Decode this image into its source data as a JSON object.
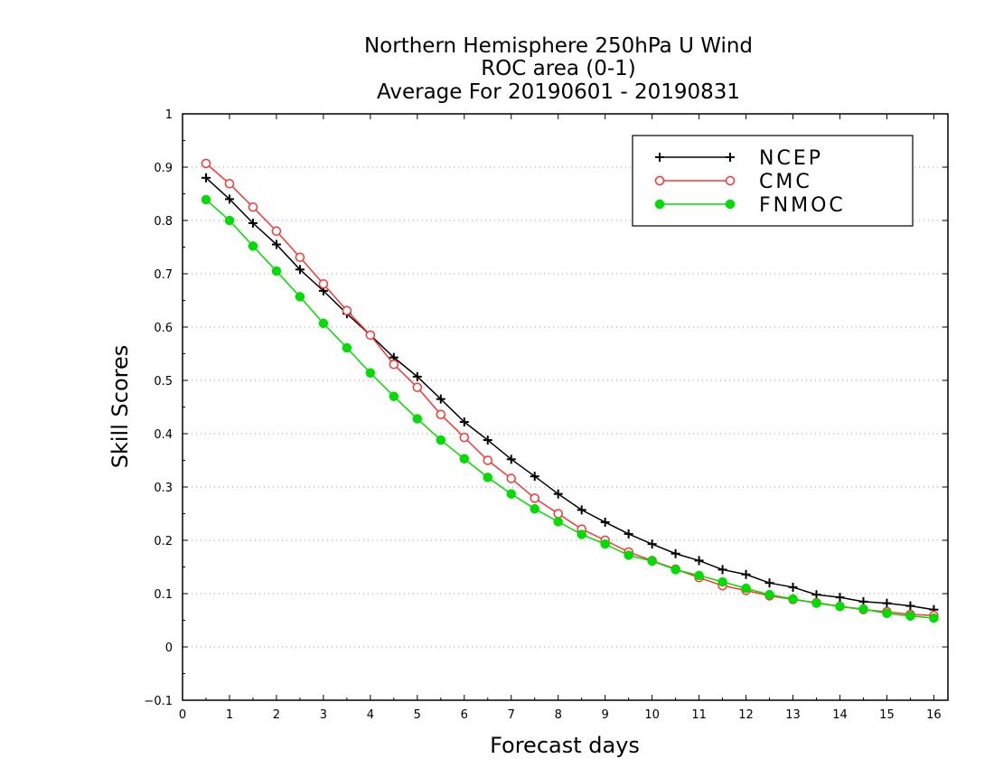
{
  "chart_data": {
    "type": "line",
    "title_lines": [
      "Northern Hemisphere 250hPa U Wind",
      "ROC area (0-1)",
      "Average For 20190601 - 20190831"
    ],
    "xlabel": "Forecast days",
    "ylabel": "Skill Scores",
    "xlim": [
      0,
      16.3
    ],
    "ylim": [
      -0.1,
      1
    ],
    "xticks": [
      0,
      1,
      2,
      3,
      4,
      5,
      6,
      7,
      8,
      9,
      10,
      11,
      12,
      13,
      14,
      15,
      16
    ],
    "yticks": [
      -0.1,
      0,
      0.1,
      0.2,
      0.3,
      0.4,
      0.5,
      0.6,
      0.7,
      0.8,
      0.9,
      1
    ],
    "ytick_labels": [
      "−0.1",
      "0",
      "0.1",
      "0.2",
      "0.3",
      "0.4",
      "0.5",
      "0.6",
      "0.7",
      "0.8",
      "0.9",
      "1"
    ],
    "grid": "horizontal dotted",
    "legend_position": "top-right",
    "x": [
      0.5,
      1,
      1.5,
      2,
      2.5,
      3,
      3.5,
      4,
      4.5,
      5,
      5.5,
      6,
      6.5,
      7,
      7.5,
      8,
      8.5,
      9,
      9.5,
      10,
      10.5,
      11,
      11.5,
      12,
      12.5,
      13,
      13.5,
      14,
      14.5,
      15,
      15.5,
      16
    ],
    "series": [
      {
        "name": "NCEP",
        "color": "#000000",
        "marker": "plus",
        "values": [
          0.88,
          0.84,
          0.795,
          0.755,
          0.708,
          0.668,
          0.625,
          0.585,
          0.543,
          0.507,
          0.465,
          0.422,
          0.388,
          0.352,
          0.32,
          0.287,
          0.257,
          0.234,
          0.212,
          0.193,
          0.175,
          0.162,
          0.145,
          0.136,
          0.12,
          0.112,
          0.098,
          0.093,
          0.085,
          0.082,
          0.077,
          0.07
        ]
      },
      {
        "name": "CMC",
        "color": "#ff3333",
        "marker": "open-circle",
        "values": [
          0.907,
          0.869,
          0.825,
          0.78,
          0.731,
          0.681,
          0.631,
          0.585,
          0.53,
          0.487,
          0.436,
          0.393,
          0.35,
          0.316,
          0.279,
          0.25,
          0.221,
          0.2,
          0.178,
          0.162,
          0.146,
          0.13,
          0.115,
          0.106,
          0.096,
          0.089,
          0.083,
          0.076,
          0.07,
          0.066,
          0.061,
          0.059
        ]
      },
      {
        "name": "FNMOC",
        "color": "#00dd00",
        "marker": "filled-circle",
        "values": [
          0.839,
          0.8,
          0.752,
          0.705,
          0.657,
          0.607,
          0.561,
          0.514,
          0.47,
          0.428,
          0.388,
          0.353,
          0.318,
          0.287,
          0.259,
          0.235,
          0.211,
          0.193,
          0.172,
          0.161,
          0.145,
          0.134,
          0.122,
          0.11,
          0.098,
          0.09,
          0.082,
          0.076,
          0.071,
          0.063,
          0.058,
          0.054
        ]
      }
    ]
  }
}
